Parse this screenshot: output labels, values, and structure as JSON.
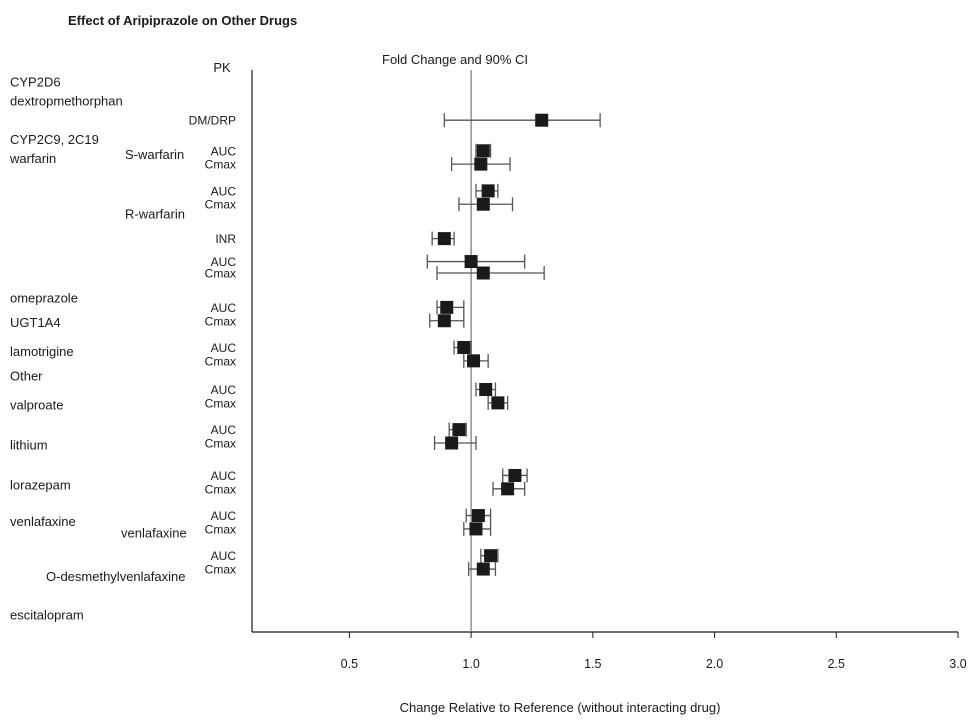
{
  "chart_data": {
    "type": "forest",
    "title": "Effect of Aripiprazole on Other Drugs",
    "pk_header": "PK",
    "ci_header": "Fold Change and 90% CI",
    "xlabel": "Change Relative to Reference (without interacting drug)",
    "xlim": [
      0.1,
      3.0
    ],
    "xticks": [
      "0.5",
      "1.0",
      "1.5",
      "2.0",
      "2.5",
      "3.0"
    ],
    "reference_line": 1.0,
    "labels": [
      {
        "text": "CYP2D6",
        "row": 0
      },
      {
        "text": "dextropmethorphan",
        "row": 1
      },
      {
        "text": "CYP2C9, 2C19",
        "row": 3
      },
      {
        "text": "warfarin",
        "row": 4
      },
      {
        "text": "S-warfarin",
        "row": 3.8
      },
      {
        "text": "R-warfarin",
        "row": 6.9
      },
      {
        "text": "omeprazole",
        "row": 11.3
      },
      {
        "text": "UGT1A4",
        "row": 12.6
      },
      {
        "text": "lamotrigine",
        "row": 14.1
      },
      {
        "text": "Other",
        "row": 15.4
      },
      {
        "text": "valproate",
        "row": 16.9
      },
      {
        "text": "lithium",
        "row": 19.0
      },
      {
        "text": "lorazepam",
        "row": 21.1
      },
      {
        "text": "venlafaxine",
        "row": 23.0
      },
      {
        "text": "venlafaxine",
        "row": 23.6
      },
      {
        "text": "O-desmethylvenlafaxine",
        "row": 25.9
      },
      {
        "text": "escitalopram",
        "row": 27.9
      }
    ],
    "rows": [
      {
        "param": "DM/DRP",
        "estimate": 1.29,
        "ci_low": 0.89,
        "ci_high": 1.53,
        "row": 2
      },
      {
        "param": "AUC",
        "estimate": 1.05,
        "ci_low": 1.02,
        "ci_high": 1.08,
        "row": 3.6
      },
      {
        "param": "Cmax",
        "estimate": 1.04,
        "ci_low": 0.92,
        "ci_high": 1.16,
        "row": 4.3
      },
      {
        "param": "AUC",
        "estimate": 1.07,
        "ci_low": 1.02,
        "ci_high": 1.11,
        "row": 5.7
      },
      {
        "param": "Cmax",
        "estimate": 1.05,
        "ci_low": 0.95,
        "ci_high": 1.17,
        "row": 6.4
      },
      {
        "param": "INR",
        "estimate": 0.89,
        "ci_low": 0.84,
        "ci_high": 0.93,
        "row": 8.2
      },
      {
        "param": "AUC",
        "estimate": 1.0,
        "ci_low": 0.82,
        "ci_high": 1.22,
        "row": 9.4
      },
      {
        "param": "Cmax",
        "estimate": 1.05,
        "ci_low": 0.86,
        "ci_high": 1.3,
        "row": 10.0
      },
      {
        "param": "AUC",
        "estimate": 0.9,
        "ci_low": 0.86,
        "ci_high": 0.97,
        "row": 11.8
      },
      {
        "param": "Cmax",
        "estimate": 0.89,
        "ci_low": 0.83,
        "ci_high": 0.97,
        "row": 12.5
      },
      {
        "param": "AUC",
        "estimate": 0.97,
        "ci_low": 0.93,
        "ci_high": 1.0,
        "row": 13.9
      },
      {
        "param": "Cmax",
        "estimate": 1.01,
        "ci_low": 0.97,
        "ci_high": 1.07,
        "row": 14.6
      },
      {
        "param": "AUC",
        "estimate": 1.06,
        "ci_low": 1.02,
        "ci_high": 1.1,
        "row": 16.1
      },
      {
        "param": "Cmax",
        "estimate": 1.11,
        "ci_low": 1.07,
        "ci_high": 1.15,
        "row": 16.8
      },
      {
        "param": "AUC",
        "estimate": 0.95,
        "ci_low": 0.91,
        "ci_high": 0.98,
        "row": 18.2
      },
      {
        "param": "Cmax",
        "estimate": 0.92,
        "ci_low": 0.85,
        "ci_high": 1.02,
        "row": 18.9
      },
      {
        "param": "AUC",
        "estimate": 1.18,
        "ci_low": 1.13,
        "ci_high": 1.23,
        "row": 20.6
      },
      {
        "param": "Cmax",
        "estimate": 1.15,
        "ci_low": 1.09,
        "ci_high": 1.22,
        "row": 21.3
      },
      {
        "param": "AUC",
        "estimate": 1.03,
        "ci_low": 0.98,
        "ci_high": 1.08,
        "row": 22.7
      },
      {
        "param": "Cmax",
        "estimate": 1.02,
        "ci_low": 0.97,
        "ci_high": 1.08,
        "row": 23.4
      },
      {
        "param": "AUC",
        "estimate": 1.08,
        "ci_low": 1.04,
        "ci_high": 1.11,
        "row": 24.8
      },
      {
        "param": "Cmax",
        "estimate": 1.05,
        "ci_low": 0.99,
        "ci_high": 1.1,
        "row": 25.5
      }
    ],
    "grid": false,
    "colors": {
      "ink": "#1a1a1a",
      "ci_line": "#555555",
      "reference_line": "#777777"
    }
  }
}
